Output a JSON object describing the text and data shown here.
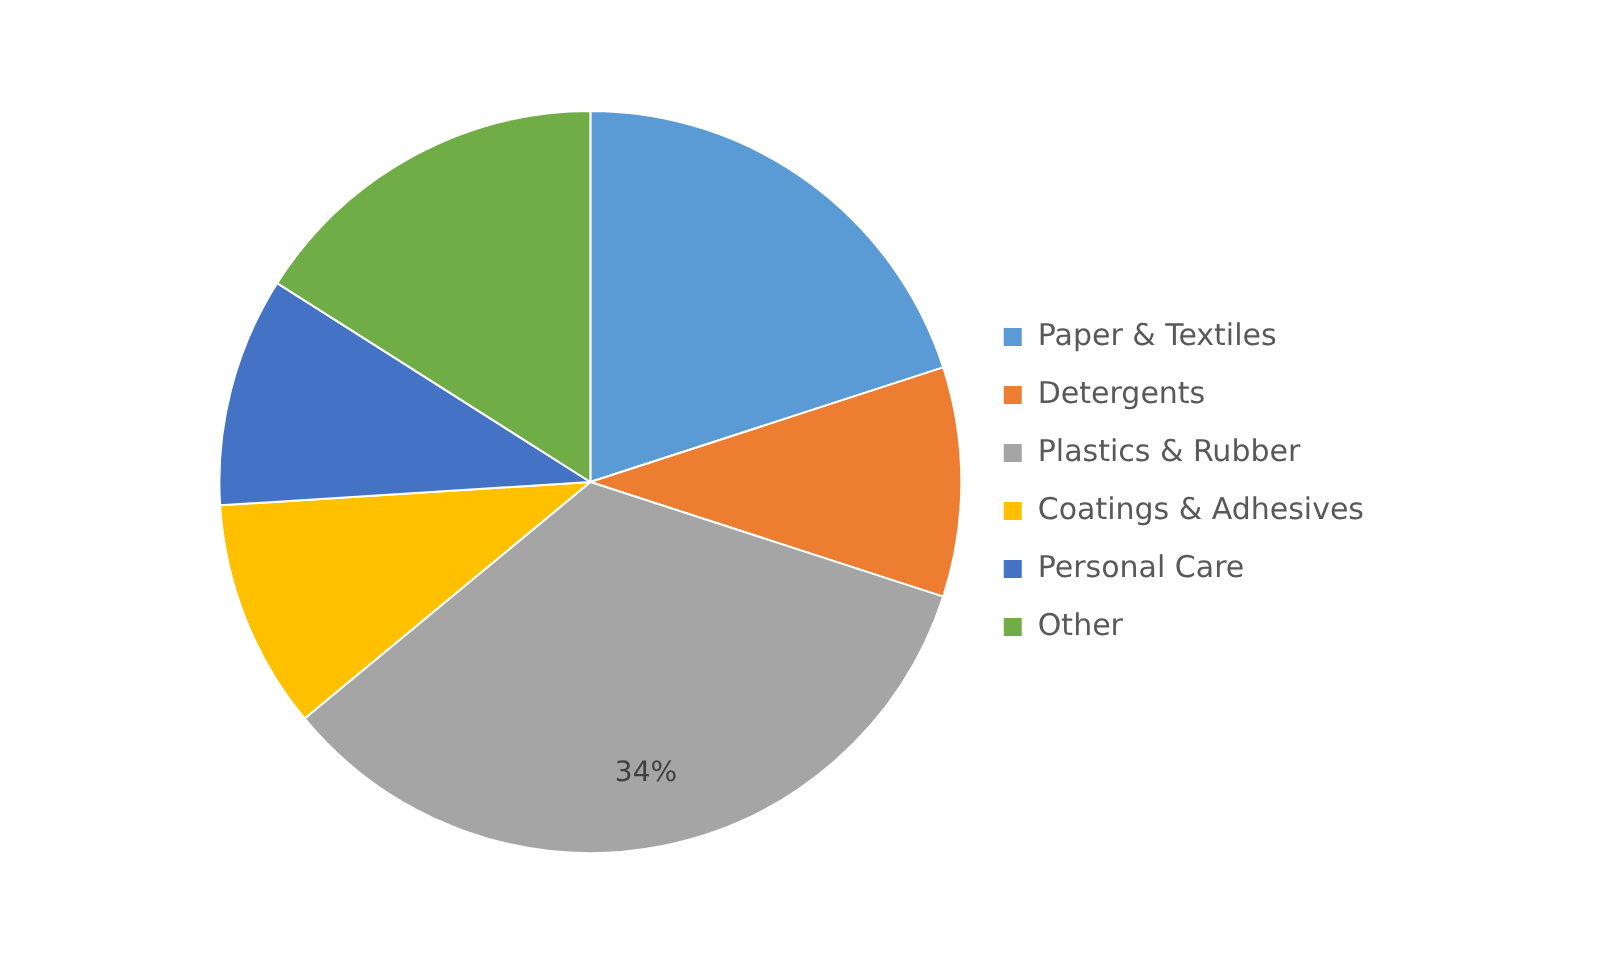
{
  "chart_data": {
    "type": "pie",
    "categories": [
      "Paper & Textiles",
      "Detergents",
      "Plastics & Rubber",
      "Coatings & Adhesives",
      "Personal Care",
      "Other"
    ],
    "values": [
      20,
      10,
      34,
      10,
      10,
      16
    ],
    "colors": [
      "#5b9bd5",
      "#ed7d31",
      "#a5a5a5",
      "#ffc000",
      "#4472c4",
      "#70ad47"
    ],
    "value_labels": [
      null,
      null,
      "34%",
      null,
      null,
      null
    ],
    "legend": "right"
  }
}
